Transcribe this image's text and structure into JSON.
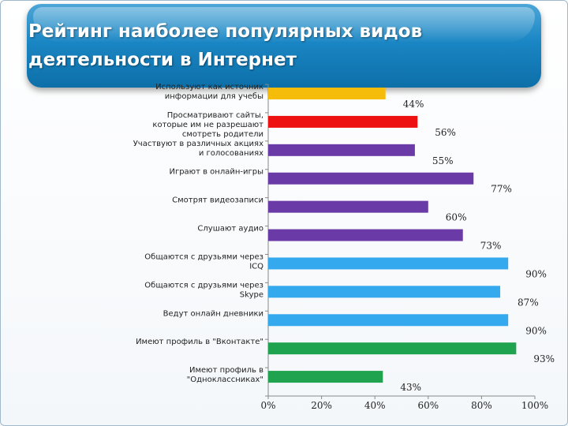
{
  "title": "Рейтинг наиболее популярных видов деятельности в Интернет",
  "chart_data": {
    "type": "bar",
    "orientation": "horizontal",
    "title": "Рейтинг наиболее популярных видов деятельности в Интернет",
    "xlim": [
      0,
      100
    ],
    "x_ticks": [
      "0%",
      "20%",
      "40%",
      "60%",
      "80%",
      "100%"
    ],
    "grid": false,
    "legend": "none",
    "categories": [
      [
        "Используют как источник",
        "информации для учебы"
      ],
      [
        "Просматривают сайты,",
        "которые им не разрешают",
        "смотреть родители"
      ],
      [
        "Участвуют в различных акциях",
        "и голосованиях"
      ],
      [
        "Играют в онлайн-игры"
      ],
      [
        "Смотрят видеозаписи"
      ],
      [
        "Слушают аудио"
      ],
      [
        "Общаются с друзьями через",
        "ICQ"
      ],
      [
        "Общаются с друзьями через",
        "Skype"
      ],
      [
        "Ведут онлайн дневники"
      ],
      [
        "Имеют профиль в \"Вконтакте\""
      ],
      [
        "Имеют профиль в",
        "\"Одноклассниках\""
      ]
    ],
    "values": [
      44,
      56,
      55,
      77,
      60,
      73,
      90,
      87,
      90,
      93,
      43
    ],
    "value_labels": [
      "44%",
      "56%",
      "55%",
      "77%",
      "60%",
      "73%",
      "90%",
      "87%",
      "90%",
      "93%",
      "43%"
    ],
    "colors": [
      "#f5bd0a",
      "#ee1111",
      "#6a3aa6",
      "#6a3aa6",
      "#6a3aa6",
      "#6a3aa6",
      "#35a9ee",
      "#35a9ee",
      "#35a9ee",
      "#1fa34e",
      "#1fa34e"
    ]
  }
}
